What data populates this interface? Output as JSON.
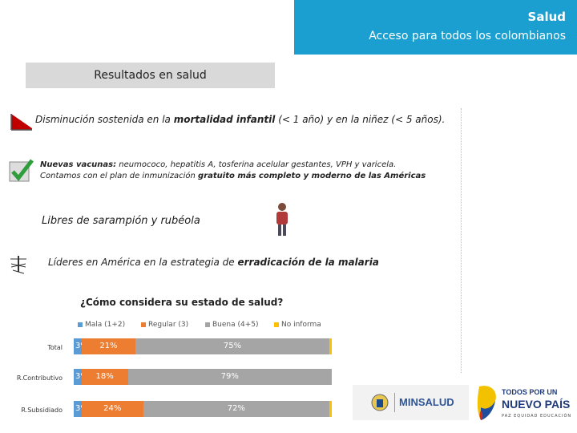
{
  "header": {
    "title": "Salud",
    "subtitle": "Acceso para todos los colombianos"
  },
  "section": {
    "label": "Resultados en salud"
  },
  "items": {
    "mortalidad": {
      "pre": "Disminución sostenida en la ",
      "bold": "mortalidad infantil",
      "post": " (< 1 año) y en la niñez (< 5 años)."
    },
    "vacunas": {
      "bold1": "Nuevas vacunas:",
      "text1": " neumococo, hepatitis A, tosferina acelular gestantes, VPH y varicela.",
      "text2": "Contamos con el plan de inmunización ",
      "bold2": "gratuito más completo y moderno de las Américas"
    },
    "sarampion": {
      "text": "Libres de sarampión y rubéola"
    },
    "malaria": {
      "pre": "Líderes en América en la estrategia de ",
      "bold": "erradicación de la malaria"
    }
  },
  "chart_data": {
    "type": "bar",
    "title": "¿Cómo  considera su estado de salud?",
    "legend": [
      "Mala (1+2)",
      "Regular (3)",
      "Buena (4+5)",
      "No informa"
    ],
    "colors": [
      "#5b9bd5",
      "#ed7d31",
      "#a5a5a5",
      "#ffc000"
    ],
    "categories": [
      "Total",
      "R.Contributivo",
      "R.Subsidiado"
    ],
    "series": [
      {
        "name": "Mala (1+2)",
        "values": [
          3,
          3,
          3
        ]
      },
      {
        "name": "Regular (3)",
        "values": [
          21,
          18,
          24
        ]
      },
      {
        "name": "Buena (4+5)",
        "values": [
          75,
          79,
          72
        ]
      },
      {
        "name": "No informa",
        "values": [
          1,
          0,
          1
        ]
      }
    ],
    "labels": [
      [
        "3%",
        "21%",
        "75%"
      ],
      [
        "3%",
        "18%",
        "79%"
      ],
      [
        "3%",
        "24%",
        "72%"
      ]
    ]
  },
  "logos": {
    "minsalud": "MINSALUD",
    "prosperidad_line1": "TODOS POR UN",
    "prosperidad_line2": "NUEVO PAÍS",
    "prosperidad_line3": "PAZ  EQUIDAD  EDUCACIÓN"
  }
}
